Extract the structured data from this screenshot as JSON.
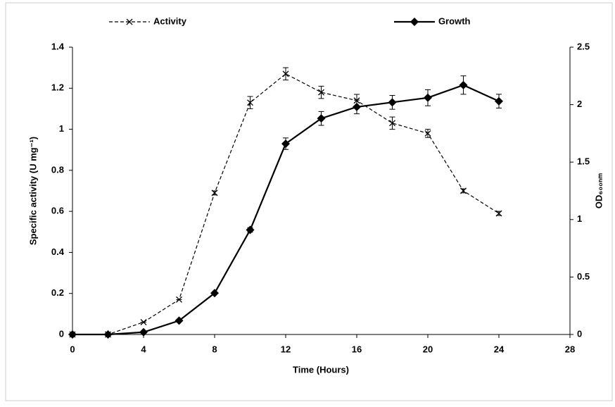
{
  "chart_data": {
    "type": "line",
    "x_label": "Time (Hours)",
    "y_label": "Specific activity (U mg⁻¹)",
    "y2_label": "OD₆₀₀ₙₘ",
    "x": [
      0,
      2,
      4,
      6,
      8,
      10,
      12,
      14,
      16,
      18,
      20,
      22,
      24
    ],
    "xlim": [
      0,
      28
    ],
    "xticks": [
      0,
      4,
      8,
      12,
      16,
      20,
      24,
      28
    ],
    "ylim": [
      0,
      1.4
    ],
    "yticks": [
      0,
      0.2,
      0.4,
      0.6,
      0.8,
      1,
      1.2,
      1.4
    ],
    "y2lim": [
      0,
      2.5
    ],
    "y2ticks": [
      0,
      0.5,
      1,
      1.5,
      2,
      2.5
    ],
    "grid": false,
    "series": [
      {
        "name": "Activity",
        "color": "#000000",
        "dashed": true,
        "marker": "x",
        "values": [
          0,
          0,
          0.06,
          0.17,
          0.69,
          1.13,
          1.27,
          1.18,
          1.14,
          1.03,
          0.98,
          0.7,
          0.59
        ],
        "errors": [
          0,
          0,
          0,
          0,
          0.01,
          0.03,
          0.03,
          0.03,
          0.03,
          0.03,
          0.02,
          0.01,
          0.01
        ]
      },
      {
        "name": "Growth",
        "color": "#000000",
        "dashed": false,
        "marker": "diamond",
        "axis": "y2",
        "values": [
          0,
          0,
          0.02,
          0.12,
          0.36,
          0.91,
          1.66,
          1.88,
          1.98,
          2.02,
          2.06,
          2.17,
          2.03
        ],
        "errors": [
          0,
          0,
          0,
          0,
          0,
          0.02,
          0.05,
          0.06,
          0.06,
          0.06,
          0.07,
          0.08,
          0.06
        ]
      }
    ]
  }
}
